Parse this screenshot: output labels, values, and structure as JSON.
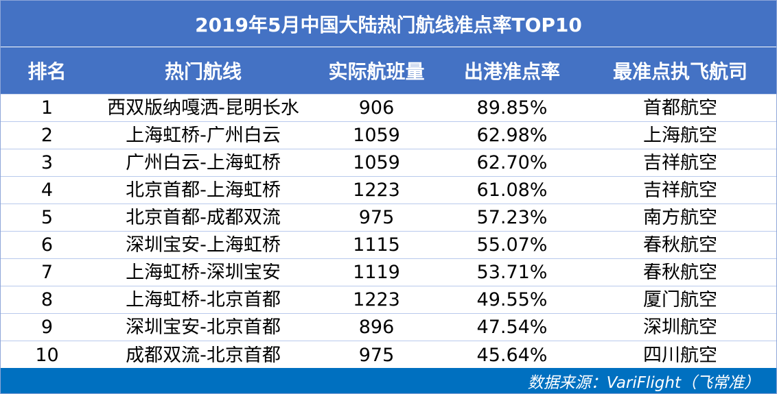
{
  "title": "2019年5月中国大陆热门航线准点率TOP10",
  "headers": {
    "rank": "排名",
    "route": "热门航线",
    "flights": "实际航班量",
    "on_time_rate": "出港准点率",
    "best_airline": "最准点执飞航司"
  },
  "rows": [
    {
      "rank": "1",
      "route": "西双版纳嘎洒-昆明长水",
      "flights": "906",
      "on_time_rate": "89.85%",
      "best_airline": "首都航空"
    },
    {
      "rank": "2",
      "route": "上海虹桥-广州白云",
      "flights": "1059",
      "on_time_rate": "62.98%",
      "best_airline": "上海航空"
    },
    {
      "rank": "3",
      "route": "广州白云-上海虹桥",
      "flights": "1059",
      "on_time_rate": "62.70%",
      "best_airline": "吉祥航空"
    },
    {
      "rank": "4",
      "route": "北京首都-上海虹桥",
      "flights": "1223",
      "on_time_rate": "61.08%",
      "best_airline": "吉祥航空"
    },
    {
      "rank": "5",
      "route": "北京首都-成都双流",
      "flights": "975",
      "on_time_rate": "57.23%",
      "best_airline": "南方航空"
    },
    {
      "rank": "6",
      "route": "深圳宝安-上海虹桥",
      "flights": "1115",
      "on_time_rate": "55.07%",
      "best_airline": "春秋航空"
    },
    {
      "rank": "7",
      "route": "上海虹桥-深圳宝安",
      "flights": "1119",
      "on_time_rate": "53.71%",
      "best_airline": "春秋航空"
    },
    {
      "rank": "8",
      "route": "上海虹桥-北京首都",
      "flights": "1223",
      "on_time_rate": "49.55%",
      "best_airline": "厦门航空"
    },
    {
      "rank": "9",
      "route": "深圳宝安-北京首都",
      "flights": "896",
      "on_time_rate": "47.54%",
      "best_airline": "深圳航空"
    },
    {
      "rank": "10",
      "route": "成都双流-北京首都",
      "flights": "975",
      "on_time_rate": "45.64%",
      "best_airline": "四川航空"
    }
  ],
  "footer": {
    "source": "数据来源：VariFlight（飞常准）"
  },
  "colors": {
    "header_blue": "#4472c4",
    "footer_blue": "#0070c0",
    "row_border": "#b8c9ec"
  }
}
